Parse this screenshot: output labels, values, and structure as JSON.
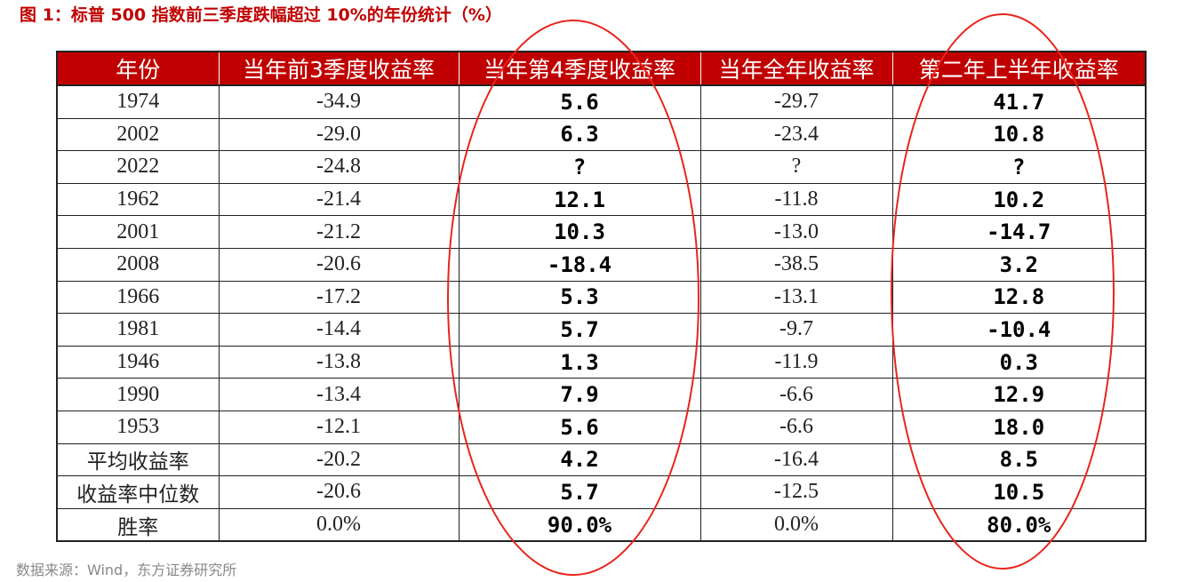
{
  "header": {
    "title": "图 1：标普 500 指数前三季度跌幅超过 10%的年份统计（%）"
  },
  "table": {
    "columns": [
      "年份",
      "当年前3季度收益率",
      "当年第4季度收益率",
      "当年全年收益率",
      "第二年上半年收益率"
    ],
    "rows": [
      [
        "1974",
        "-34.9",
        "5.6",
        "-29.7",
        "41.7"
      ],
      [
        "2002",
        "-29.0",
        "6.3",
        "-23.4",
        "10.8"
      ],
      [
        "2022",
        "-24.8",
        "?",
        "?",
        "?"
      ],
      [
        "1962",
        "-21.4",
        "12.1",
        "-11.8",
        "10.2"
      ],
      [
        "2001",
        "-21.2",
        "10.3",
        "-13.0",
        "-14.7"
      ],
      [
        "2008",
        "-20.6",
        "-18.4",
        "-38.5",
        "3.2"
      ],
      [
        "1966",
        "-17.2",
        "5.3",
        "-13.1",
        "12.8"
      ],
      [
        "1981",
        "-14.4",
        "5.7",
        "-9.7",
        "-10.4"
      ],
      [
        "1946",
        "-13.8",
        "1.3",
        "-11.9",
        "0.3"
      ],
      [
        "1990",
        "-13.4",
        "7.9",
        "-6.6",
        "12.9"
      ],
      [
        "1953",
        "-12.1",
        "5.6",
        "-6.6",
        "18.0"
      ],
      [
        "平均收益率",
        "-20.2",
        "4.2",
        "-16.4",
        "8.5"
      ],
      [
        "收益率中位数",
        "-20.6",
        "5.7",
        "-12.5",
        "10.5"
      ],
      [
        "胜率",
        "0.0%",
        "90.0%",
        "0.0%",
        "80.0%"
      ]
    ]
  },
  "footer": {
    "source": "数据来源：Wind，东方证券研究所"
  }
}
